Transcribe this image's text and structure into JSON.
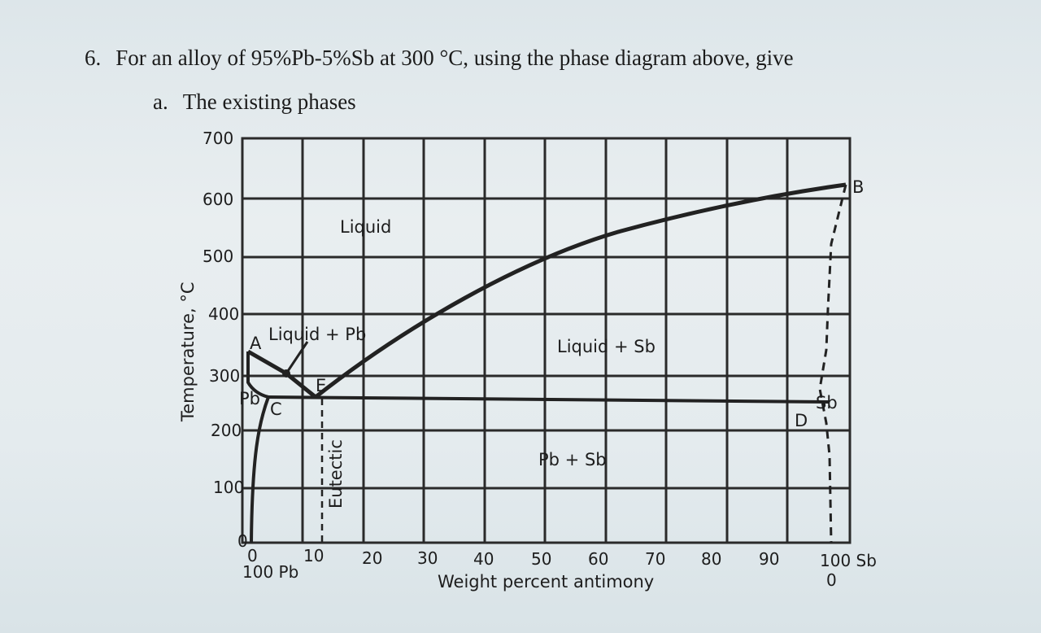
{
  "question": {
    "number": "6.",
    "text": "For an alloy of 95%Pb-5%Sb at 300 °C, using the phase diagram above, give",
    "sub_letter": "a.",
    "sub_text": "The existing phases"
  },
  "diagram": {
    "y_axis_label": "Temperature, °C",
    "x_axis_label": "Weight percent antimony",
    "y_ticks": [
      "700",
      "600",
      "500",
      "400",
      "300",
      "200",
      "100",
      "0"
    ],
    "x_ticks": [
      "0",
      "10",
      "20",
      "30",
      "40",
      "50",
      "60",
      "70",
      "80",
      "90",
      "100 Sb"
    ],
    "x_left_sub": "100 Pb",
    "x_right_sub": "0",
    "regions": {
      "liquid": "Liquid",
      "liquid_pb": "Liquid + Pb",
      "liquid_sb": "Liquid + Sb",
      "pb_sb": "Pb + Sb",
      "pb": "Pb",
      "sb": "Sb",
      "eutectic": "Eutectic"
    },
    "points": {
      "A": "A",
      "B": "B",
      "C": "C",
      "D": "D",
      "E": "E"
    }
  }
}
